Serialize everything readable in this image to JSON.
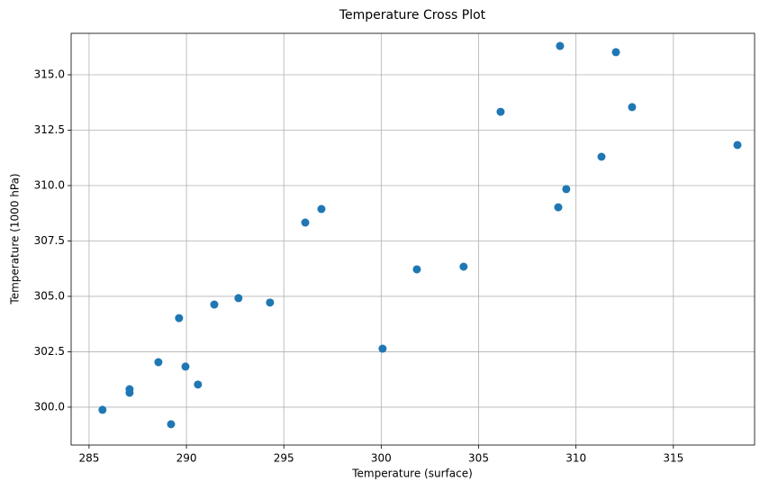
{
  "chart_data": {
    "type": "scatter",
    "title": "Temperature Cross Plot",
    "x_label": "Temperature (surface)",
    "y_label": "Temperature (1000 hPa)",
    "color": "#1f77b4",
    "grid": true,
    "x": [
      285.69,
      287.08,
      287.08,
      288.56,
      289.21,
      289.62,
      289.95,
      290.59,
      291.43,
      292.67,
      294.29,
      296.1,
      296.93,
      300.07,
      301.83,
      304.23,
      306.13,
      309.09,
      309.18,
      309.5,
      311.31,
      312.05,
      312.88,
      318.29
    ],
    "values": [
      299.88,
      300.81,
      300.65,
      302.03,
      299.23,
      304.02,
      301.83,
      301.02,
      304.63,
      304.92,
      304.72,
      308.33,
      308.94,
      302.64,
      306.22,
      306.34,
      313.33,
      309.02,
      316.3,
      309.84,
      311.3,
      316.02,
      313.54,
      311.83
    ],
    "xlim": [
      284.08,
      319.17
    ],
    "xticks": [
      285,
      290,
      295,
      300,
      305,
      310,
      315
    ],
    "ylim": [
      298.29,
      316.87
    ],
    "yticks": [
      {
        "value": 300,
        "label": "300.0"
      },
      302.5,
      {
        "value": 305,
        "label": "305.0"
      },
      307.5,
      {
        "value": 310,
        "label": "310.0"
      },
      312.5,
      {
        "value": 315,
        "label": "315.0"
      }
    ]
  }
}
